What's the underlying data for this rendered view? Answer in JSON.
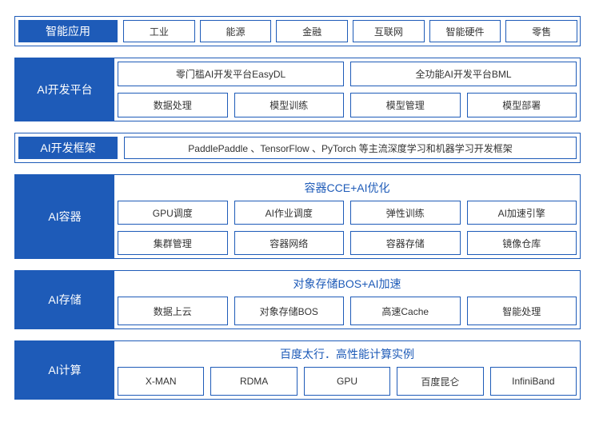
{
  "colors": {
    "primary": "#1e5bb8",
    "border": "#1e5bb8",
    "text": "#333333",
    "background": "#ffffff"
  },
  "apps": {
    "label": "智能应用",
    "items": [
      "工业",
      "能源",
      "金融",
      "互联网",
      "智能硬件",
      "零售"
    ]
  },
  "platform": {
    "label": "AI开发平台",
    "row1": [
      "零门槛AI开发平台EasyDL",
      "全功能AI开发平台BML"
    ],
    "row2": [
      "数据处理",
      "模型训练",
      "模型管理",
      "模型部署"
    ]
  },
  "framework": {
    "label": "AI开发框架",
    "text": "PaddlePaddle 、TensorFlow 、PyTorch 等主流深度学习和机器学习开发框架"
  },
  "container": {
    "label": "AI容器",
    "title": "容器CCE+AI优化",
    "row1": [
      "GPU调度",
      "AI作业调度",
      "弹性训练",
      "AI加速引擎"
    ],
    "row2": [
      "集群管理",
      "容器网络",
      "容器存储",
      "镜像仓库"
    ]
  },
  "storage": {
    "label": "AI存储",
    "title": "对象存储BOS+AI加速",
    "row1": [
      "数据上云",
      "对象存储BOS",
      "高速Cache",
      "智能处理"
    ]
  },
  "compute": {
    "label": "AI计算",
    "title": "百度太行．高性能计算实例",
    "row1": [
      "X-MAN",
      "RDMA",
      "GPU",
      "百度昆仑",
      "InfiniBand"
    ]
  }
}
